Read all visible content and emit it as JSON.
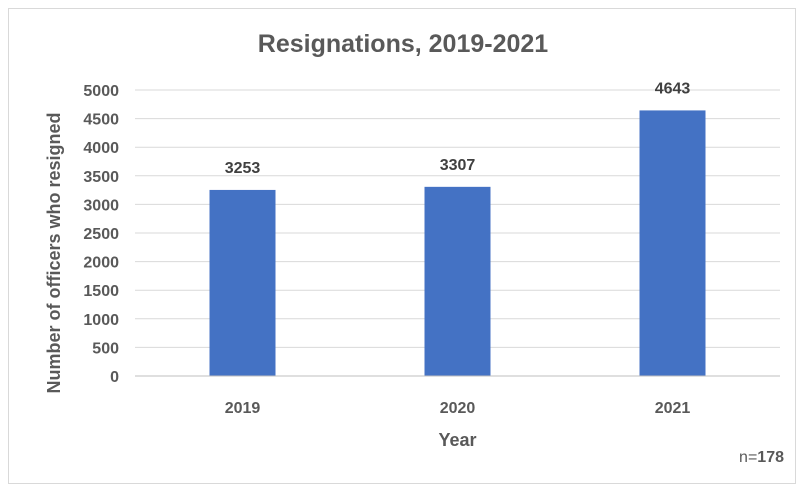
{
  "chart_data": {
    "type": "bar",
    "title": "Resignations, 2019-2021",
    "xlabel": "Year",
    "ylabel": "Number of officers who resigned",
    "categories": [
      "2019",
      "2020",
      "2021"
    ],
    "values": [
      3253,
      3307,
      4643
    ],
    "data_labels": [
      "3253",
      "3307",
      "4643"
    ],
    "ylim": [
      0,
      5000
    ],
    "yticks": [
      0,
      500,
      1000,
      1500,
      2000,
      2500,
      3000,
      3500,
      4000,
      4500,
      5000
    ],
    "bar_color": "#4472c4",
    "grid": true,
    "legend": "none"
  },
  "note": {
    "prefix": "n=",
    "value": "178"
  }
}
